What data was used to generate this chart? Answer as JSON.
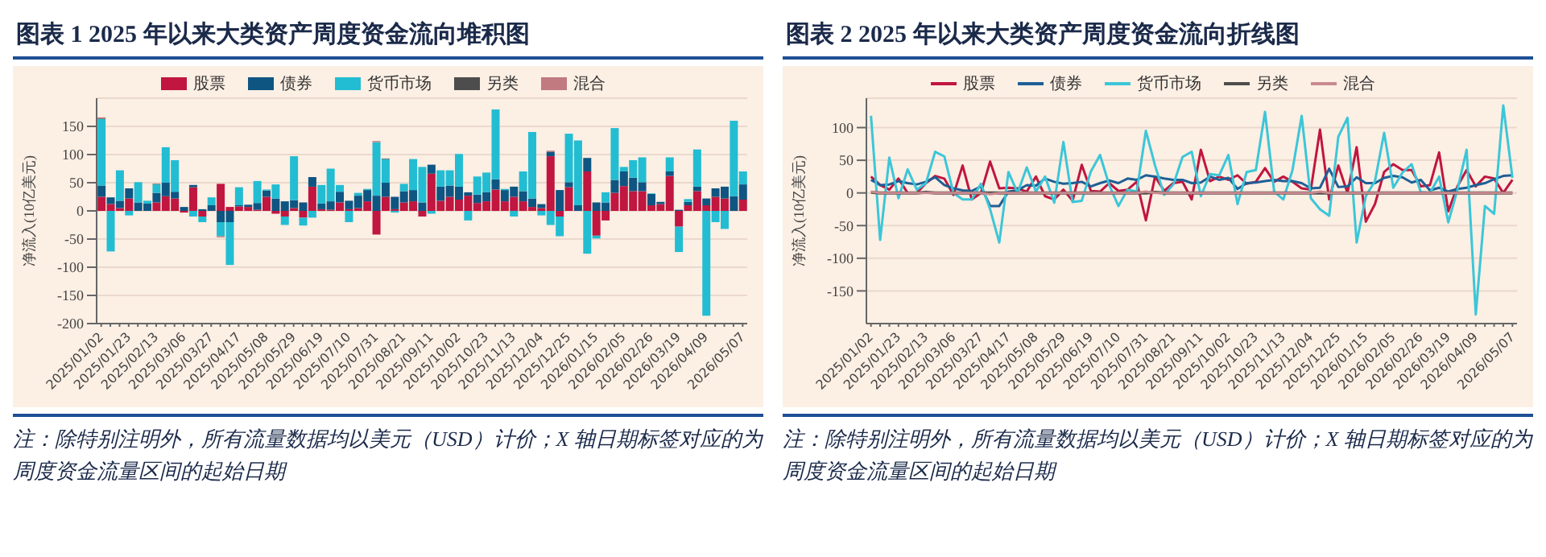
{
  "chart_data": [
    {
      "type": "bar",
      "stacked": true,
      "title": "图表 1   2025 年以来大类资产周度资金流向堆积图",
      "ylabel": "净流入(10亿美元)",
      "legend": "top",
      "grid": "y",
      "ylim": [
        -200,
        200
      ],
      "yticks": [
        -200,
        -150,
        -100,
        -50,
        0,
        50,
        100,
        150
      ],
      "categories": [
        "2025/01/02",
        null,
        null,
        "2025/01/23",
        null,
        null,
        "2025/02/13",
        null,
        null,
        "2025/03/06",
        null,
        null,
        "2025/03/27",
        null,
        null,
        "2025/04/17",
        null,
        null,
        "2025/05/08",
        null,
        null,
        "2025/05/29",
        null,
        null,
        "2025/06/19",
        null,
        null,
        "2025/07/10",
        null,
        null,
        "2025/07/31",
        null,
        null,
        "2025/08/21",
        null,
        null,
        "2025/09/11",
        null,
        null,
        "2025/10/02",
        null,
        null,
        "2025/10/23",
        null,
        null,
        "2025/11/13",
        null,
        null,
        "2025/12/04",
        null,
        null,
        "2025/12/25",
        null,
        null,
        "2026/01/15",
        null,
        null,
        "2026/02/05",
        null,
        null,
        "2026/02/26",
        null,
        null,
        "2026/03/19",
        null,
        null,
        "2026/04/09",
        null,
        null,
        null,
        "2026/05/07"
      ],
      "series": [
        {
          "name": "股票",
          "color": "#c0163f",
          "values": [
            25,
            12,
            5,
            22,
            0,
            0,
            15,
            26,
            22,
            -3,
            42,
            -10,
            0,
            48,
            7,
            8,
            7,
            2,
            25,
            -5,
            -10,
            5,
            -12,
            43,
            3,
            2,
            15,
            3,
            5,
            17,
            -42,
            25,
            3,
            15,
            17,
            -10,
            66,
            18,
            25,
            20,
            27,
            14,
            17,
            38,
            17,
            25,
            17,
            7,
            5,
            97,
            -10,
            42,
            0,
            70,
            -44,
            -17,
            32,
            44,
            35,
            35,
            10,
            12,
            62,
            -28,
            10,
            35,
            10,
            25,
            22,
            0,
            20
          ]
        },
        {
          "name": "债券",
          "color": "#0f5582",
          "values": [
            20,
            12,
            13,
            18,
            15,
            13,
            17,
            24,
            12,
            7,
            4,
            3,
            10,
            -20,
            -20,
            2,
            4,
            12,
            11,
            22,
            17,
            14,
            15,
            17,
            10,
            15,
            19,
            15,
            22,
            20,
            27,
            25,
            22,
            20,
            20,
            15,
            16,
            25,
            20,
            23,
            6,
            15,
            16,
            18,
            20,
            18,
            18,
            15,
            7,
            8,
            37,
            9,
            10,
            24,
            15,
            15,
            23,
            26,
            24,
            16,
            20,
            4,
            8,
            2,
            6,
            8,
            12,
            15,
            21,
            26,
            27
          ]
        },
        {
          "name": "货币市场",
          "color": "#22bdd2",
          "values": [
            118,
            -72,
            54,
            -8,
            36,
            5,
            15,
            63,
            56,
            0,
            -10,
            -10,
            14,
            -25,
            -76,
            32,
            0,
            39,
            2,
            25,
            -15,
            78,
            -14,
            -12,
            33,
            58,
            12,
            -20,
            5,
            2,
            95,
            42,
            -3,
            13,
            55,
            63,
            -5,
            29,
            27,
            58,
            -17,
            32,
            35,
            124,
            2,
            -10,
            35,
            118,
            -8,
            -25,
            -35,
            86,
            115,
            -76,
            -5,
            18,
            92,
            8,
            31,
            44,
            1,
            0,
            25,
            -45,
            5,
            66,
            -186,
            -20,
            -32,
            134,
            23
          ]
        },
        {
          "name": "另类",
          "color": "#4d4d4d",
          "values": [
            1,
            0,
            0,
            0,
            0,
            0,
            1,
            0,
            0,
            0,
            0,
            0,
            0,
            0,
            0,
            0,
            0,
            0,
            0,
            0,
            0,
            0,
            0,
            0,
            0,
            0,
            0,
            0,
            0,
            0,
            0,
            1,
            0,
            0,
            0,
            0,
            0,
            0,
            0,
            0,
            0,
            0,
            0,
            0,
            0,
            0,
            0,
            0,
            0,
            0,
            0,
            0,
            0,
            0,
            0,
            0,
            0,
            0,
            0,
            0,
            0,
            0,
            0,
            0,
            0,
            0,
            0,
            0,
            0,
            0,
            0
          ]
        },
        {
          "name": "混合",
          "color": "#c07a80",
          "values": [
            2,
            0,
            0,
            0,
            0,
            0,
            0,
            0,
            0,
            0,
            0,
            0,
            0,
            -2,
            0,
            0,
            0,
            0,
            0,
            0,
            0,
            0,
            0,
            0,
            0,
            0,
            0,
            0,
            0,
            0,
            2,
            0,
            0,
            0,
            0,
            0,
            0,
            0,
            0,
            0,
            0,
            0,
            0,
            0,
            0,
            0,
            0,
            0,
            0,
            2,
            0,
            0,
            0,
            0,
            0,
            0,
            0,
            0,
            0,
            0,
            0,
            0,
            0,
            0,
            0,
            0,
            0,
            0,
            0,
            0,
            0
          ]
        }
      ],
      "annotations": [
        "注：除特别注明外，所有流量数据均以美元（USD）计价；X 轴日期标签对应的为周度资金流量区间的起始日期"
      ]
    },
    {
      "type": "line",
      "title": "图表 2   2025 年以来大类资产周度资金流向折线图",
      "ylabel": "净流入(10亿美元)",
      "legend": "top",
      "grid": "y",
      "ylim": [
        -200,
        145
      ],
      "yticks": [
        -150,
        -100,
        -50,
        0,
        50,
        100
      ],
      "categories": [
        "2025/01/02",
        null,
        null,
        "2025/01/23",
        null,
        null,
        "2025/02/13",
        null,
        null,
        "2025/03/06",
        null,
        null,
        "2025/03/27",
        null,
        null,
        "2025/04/17",
        null,
        null,
        "2025/05/08",
        null,
        null,
        "2025/05/29",
        null,
        null,
        "2025/06/19",
        null,
        null,
        "2025/07/10",
        null,
        null,
        "2025/07/31",
        null,
        null,
        "2025/08/21",
        null,
        null,
        "2025/09/11",
        null,
        null,
        "2025/10/02",
        null,
        null,
        "2025/10/23",
        null,
        null,
        "2025/11/13",
        null,
        null,
        "2025/12/04",
        null,
        null,
        "2025/12/25",
        null,
        null,
        "2026/01/15",
        null,
        null,
        "2026/02/05",
        null,
        null,
        "2026/02/26",
        null,
        null,
        "2026/03/19",
        null,
        null,
        "2026/04/09",
        null,
        null,
        null,
        "2026/05/07"
      ],
      "series": [
        {
          "name": "股票",
          "color": "#c0163f",
          "values": [
            25,
            12,
            5,
            22,
            0,
            0,
            15,
            26,
            22,
            -3,
            42,
            -10,
            0,
            48,
            7,
            8,
            7,
            2,
            25,
            -5,
            -10,
            5,
            -12,
            43,
            3,
            2,
            15,
            3,
            5,
            17,
            -42,
            25,
            3,
            15,
            17,
            -10,
            66,
            18,
            25,
            20,
            27,
            14,
            17,
            38,
            17,
            25,
            17,
            7,
            5,
            97,
            -10,
            42,
            0,
            70,
            -44,
            -17,
            32,
            44,
            35,
            35,
            10,
            12,
            62,
            -28,
            10,
            35,
            10,
            25,
            22,
            0,
            20
          ]
        },
        {
          "name": "债券",
          "color": "#1f5f96",
          "values": [
            20,
            12,
            13,
            18,
            15,
            13,
            17,
            24,
            12,
            7,
            4,
            3,
            10,
            -20,
            -20,
            2,
            4,
            12,
            11,
            22,
            17,
            14,
            15,
            17,
            10,
            15,
            19,
            15,
            22,
            20,
            27,
            25,
            22,
            20,
            20,
            15,
            16,
            25,
            20,
            23,
            6,
            15,
            16,
            18,
            20,
            18,
            18,
            15,
            7,
            8,
            37,
            9,
            10,
            24,
            15,
            15,
            23,
            26,
            24,
            16,
            20,
            4,
            8,
            2,
            6,
            8,
            12,
            15,
            21,
            26,
            27
          ]
        },
        {
          "name": "货币市场",
          "color": "#3cc6d8",
          "values": [
            118,
            -72,
            54,
            -8,
            36,
            5,
            15,
            63,
            56,
            0,
            -10,
            -10,
            14,
            -25,
            -76,
            32,
            0,
            39,
            2,
            25,
            -15,
            78,
            -14,
            -12,
            33,
            58,
            12,
            -20,
            5,
            2,
            95,
            42,
            -3,
            13,
            55,
            63,
            -5,
            29,
            27,
            58,
            -17,
            32,
            35,
            124,
            2,
            -10,
            35,
            118,
            -8,
            -25,
            -35,
            86,
            115,
            -76,
            -5,
            18,
            92,
            8,
            31,
            44,
            1,
            0,
            25,
            -45,
            5,
            66,
            -186,
            -20,
            -32,
            134,
            23
          ]
        },
        {
          "name": "另类",
          "color": "#4d4d4d",
          "values": [
            1,
            0,
            0,
            0,
            0,
            0,
            1,
            0,
            0,
            0,
            0,
            0,
            0,
            0,
            0,
            0,
            0,
            0,
            0,
            0,
            0,
            0,
            0,
            0,
            0,
            0,
            0,
            0,
            0,
            0,
            0,
            1,
            0,
            0,
            0,
            0,
            0,
            0,
            0,
            0,
            0,
            0,
            0,
            0,
            0,
            0,
            0,
            0,
            0,
            0,
            0,
            0,
            0,
            0,
            0,
            0,
            0,
            0,
            0,
            0,
            0,
            0,
            0,
            0,
            0,
            0,
            0,
            0,
            0,
            0,
            0
          ]
        },
        {
          "name": "混合",
          "color": "#c98a8e",
          "values": [
            2,
            0,
            0,
            0,
            0,
            0,
            0,
            0,
            0,
            0,
            0,
            0,
            0,
            -2,
            0,
            0,
            0,
            0,
            0,
            0,
            0,
            0,
            0,
            0,
            0,
            0,
            0,
            0,
            0,
            0,
            2,
            0,
            0,
            0,
            0,
            0,
            0,
            0,
            0,
            0,
            0,
            0,
            0,
            0,
            0,
            0,
            0,
            0,
            0,
            2,
            0,
            0,
            0,
            0,
            0,
            0,
            0,
            0,
            0,
            0,
            0,
            0,
            0,
            0,
            0,
            0,
            0,
            0,
            0,
            0,
            0
          ]
        }
      ],
      "annotations": [
        "注：除特别注明外，所有流量数据均以美元（USD）计价；X 轴日期标签对应的为周度资金流量区间的起始日期"
      ]
    }
  ]
}
